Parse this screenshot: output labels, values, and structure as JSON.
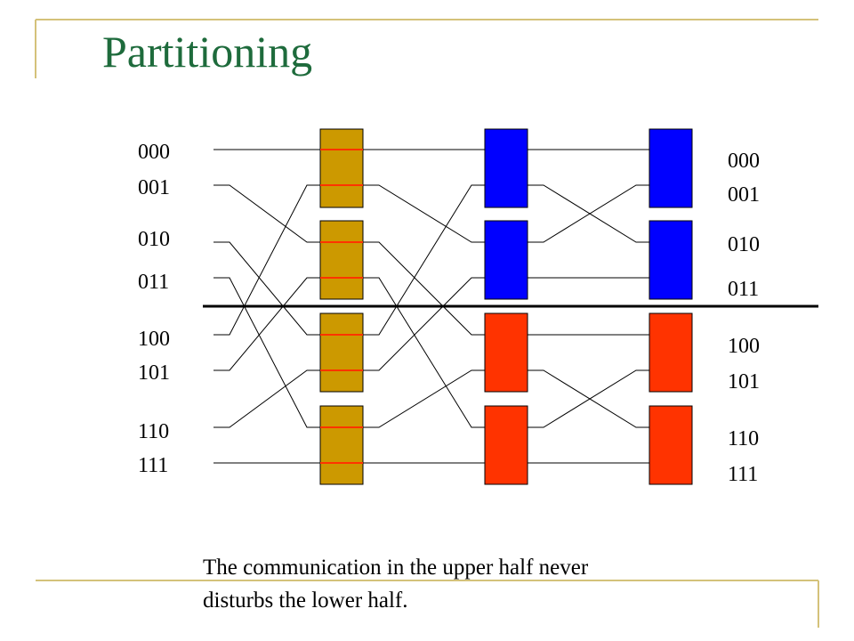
{
  "title": "Partitioning",
  "inputs": [
    "000",
    "001",
    "010",
    "011",
    "100",
    "101",
    "110",
    "111"
  ],
  "outputs": [
    "000",
    "001",
    "010",
    "011",
    "100",
    "101",
    "110",
    "111"
  ],
  "caption": [
    "The communication in the upper half  never",
    "disturbs the lower half."
  ]
}
